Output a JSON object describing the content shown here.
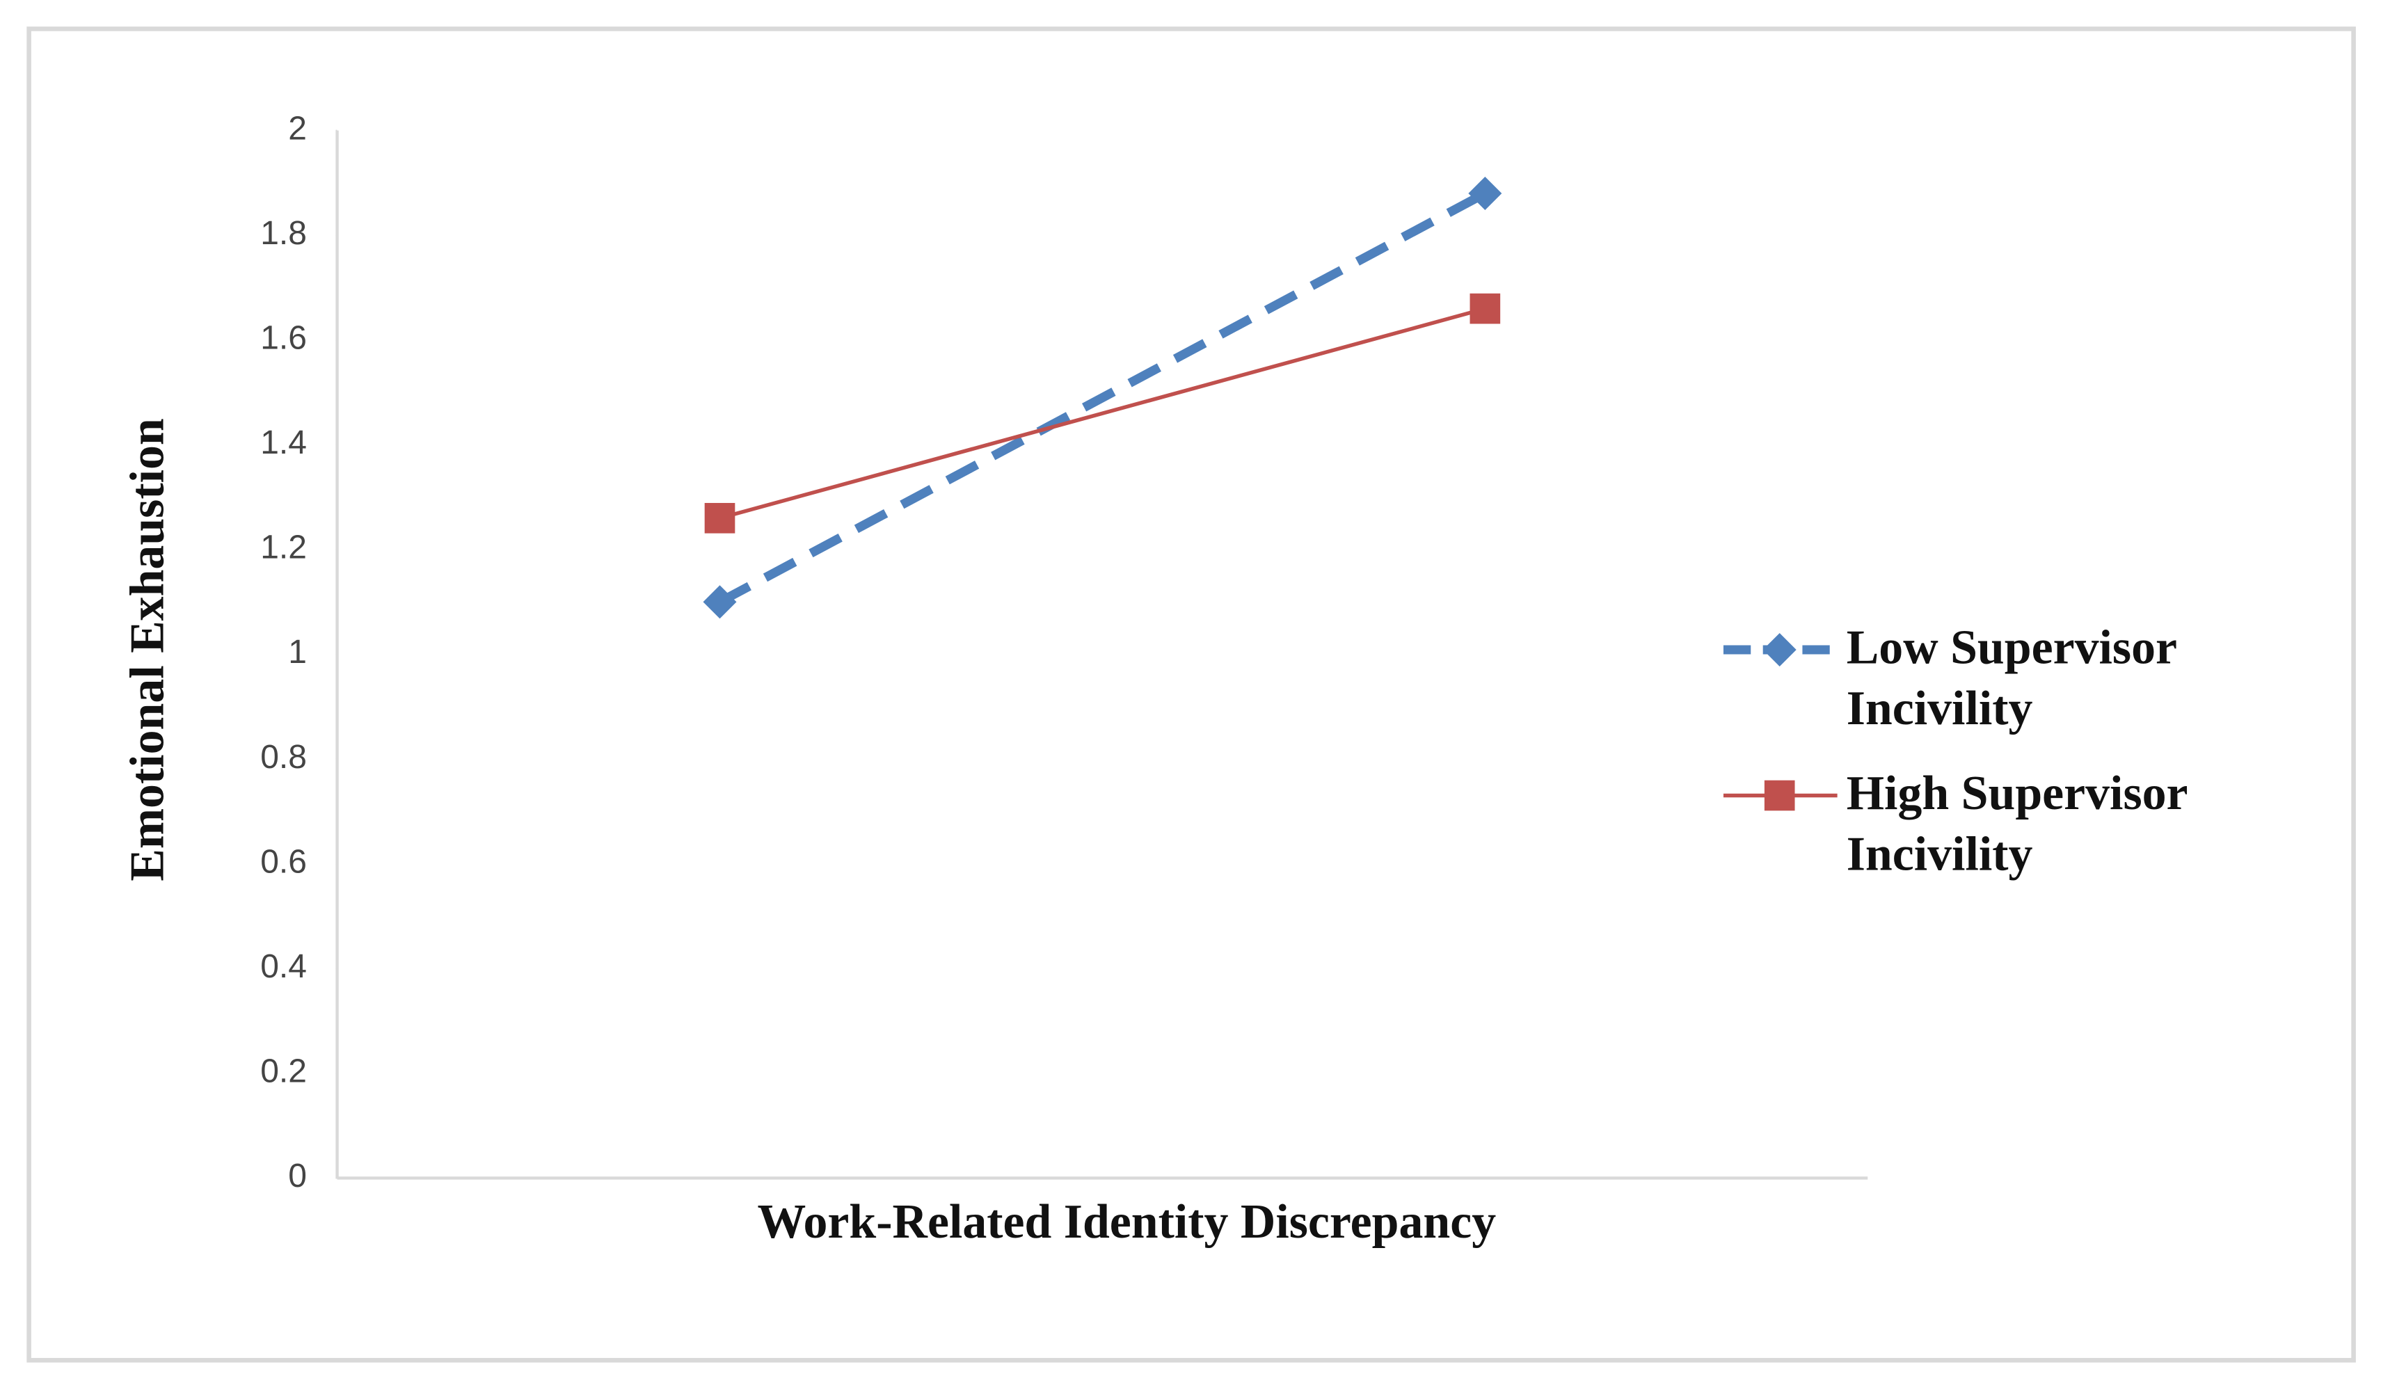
{
  "chart_data": {
    "type": "line",
    "x_label": "Work-Related Identity Discrepancy",
    "y_label": "Emotional Exhaustion",
    "categories": [
      null,
      null
    ],
    "series": [
      {
        "name": "Low Supervisor Incivility",
        "color": "#4f81bd",
        "values": [
          1.1,
          1.88
        ]
      },
      {
        "name": "High Supervisor Incivility",
        "color": "#c0504d",
        "values": [
          1.26,
          1.66
        ]
      }
    ],
    "ylim": [
      0,
      2
    ],
    "yticks": [
      0,
      0.2,
      0.4,
      0.6,
      0.8,
      1,
      1.2,
      1.4,
      1.6,
      1.8,
      2
    ],
    "legend": "right"
  }
}
